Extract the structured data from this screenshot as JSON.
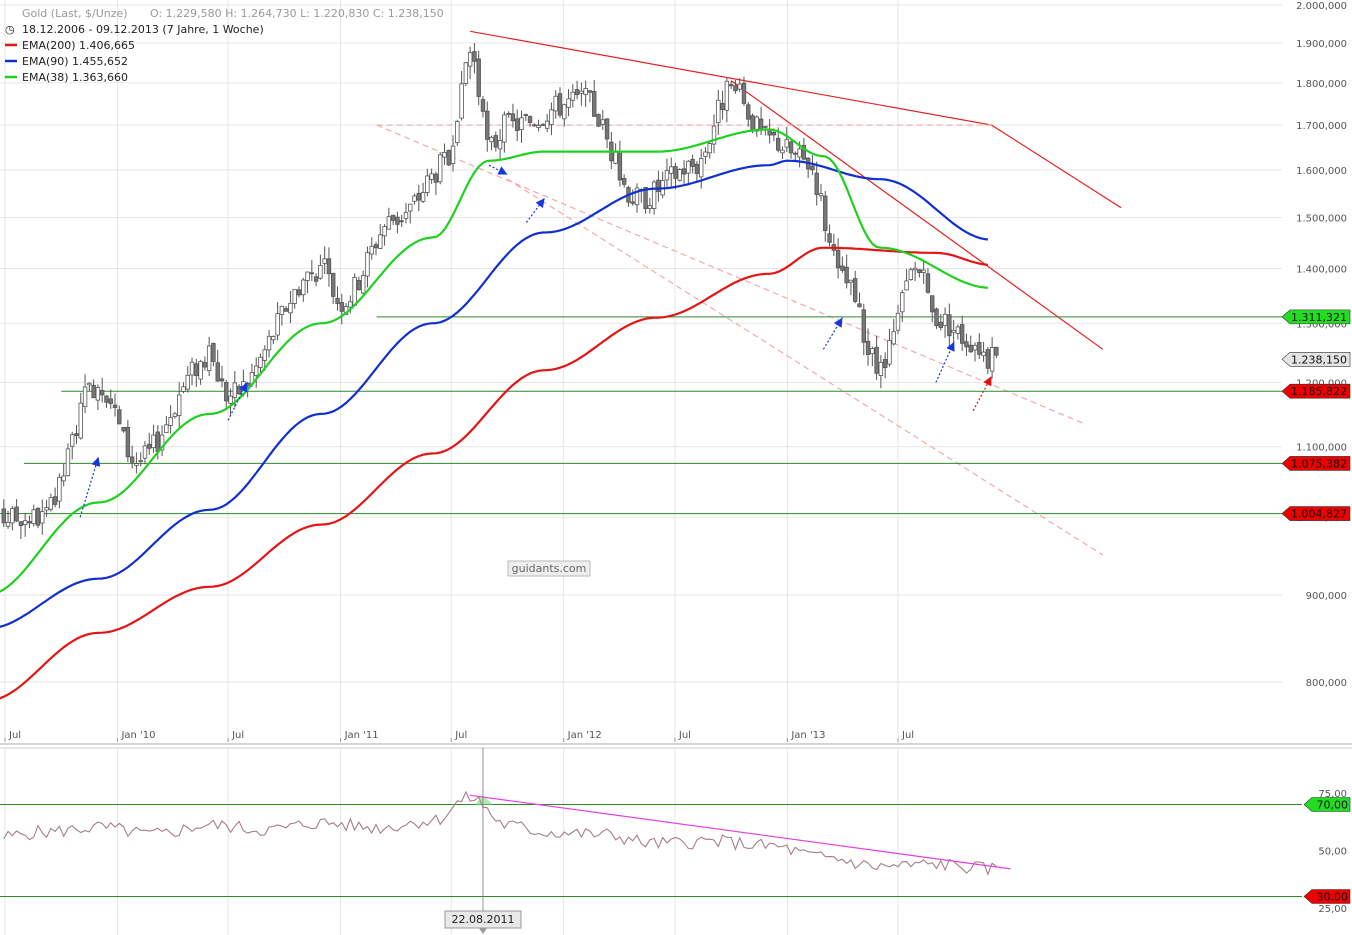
{
  "header": {
    "instrument": "Gold (Last, $/Unze)",
    "ohlc": "O: 1.229,580  H: 1.264,730  L: 1.220,830  C: 1.238,150",
    "range": "18.12.2006 - 09.12.2013 (7 Jahre, 1 Woche)"
  },
  "legend": [
    {
      "label": "EMA(200)",
      "value": "1.406,665",
      "color": "#e31515"
    },
    {
      "label": "EMA(90)",
      "value": "1.455,652",
      "color": "#1030d0"
    },
    {
      "label": "EMA(38)",
      "value": "1.363,660",
      "color": "#20d020"
    }
  ],
  "watermark": "guidants.com",
  "colors": {
    "up_candle": "#ffffff",
    "down_candle": "#777777",
    "candle_outline": "#555555",
    "trendline": "#e52020",
    "dashed_channel": "#f4a9a9",
    "support_line": "#2a8a2a",
    "rsi_line": "#a57e88",
    "rsi_trend": "#e040e0",
    "arrow_blue": "#1436e0",
    "arrow_red": "#e01010"
  },
  "chart_data": [
    {
      "type": "candlestick",
      "scale": "log",
      "ylim": [
        750000,
        2000000
      ],
      "x_ticks": [
        "Jul",
        "Jan '10",
        "Jul",
        "Jan '11",
        "Jul",
        "Jan '12",
        "Jul",
        "Jan '13",
        "Jul"
      ],
      "y_ticks": [
        "2.000,000",
        "1.900,000",
        "1.800,000",
        "1.700,000",
        "1.600,000",
        "1.500,000",
        "1.400,000",
        "1.300,000",
        "1.200,000",
        "1.100,000",
        "1.000,000",
        "900,000",
        "800,000"
      ],
      "y_tick_values": [
        2000000,
        1900000,
        1800000,
        1700000,
        1600000,
        1500000,
        1400000,
        1300000,
        1200000,
        1100000,
        1000000,
        900000,
        800000
      ],
      "price_anchor_dates": [
        "2009-09",
        "2009-12",
        "2010-02",
        "2010-06",
        "2010-07",
        "2010-12",
        "2011-01",
        "2011-04",
        "2011-07",
        "2011-08",
        "2011-09",
        "2011-10",
        "2012-02",
        "2012-05",
        "2012-08",
        "2012-10",
        "2012-12",
        "2013-02",
        "2013-04",
        "2013-06",
        "2013-08",
        "2013-09",
        "2013-11",
        "2013-12"
      ],
      "price_anchor_values": [
        1000000,
        1200000,
        1080000,
        1240000,
        1180000,
        1400000,
        1340000,
        1500000,
        1620000,
        1880000,
        1650000,
        1700000,
        1760000,
        1540000,
        1610000,
        1780000,
        1670000,
        1620000,
        1380000,
        1220000,
        1400000,
        1310000,
        1270000,
        1238150
      ],
      "ema200_dates": [
        "2009-06",
        "2009-12",
        "2010-06",
        "2010-12",
        "2011-06",
        "2011-12",
        "2012-06",
        "2012-12",
        "2013-03",
        "2013-09",
        "2013-12"
      ],
      "ema200_values": [
        780000,
        855000,
        910000,
        990000,
        1090000,
        1220000,
        1310000,
        1390000,
        1440000,
        1430000,
        1406665
      ],
      "ema90_dates": [
        "2009-06",
        "2009-12",
        "2010-06",
        "2010-12",
        "2011-06",
        "2011-12",
        "2012-06",
        "2012-12",
        "2013-01",
        "2013-06",
        "2013-12"
      ],
      "ema90_values": [
        860000,
        920000,
        1010000,
        1150000,
        1300000,
        1470000,
        1560000,
        1610000,
        1620000,
        1580000,
        1455652
      ],
      "ema38_dates": [
        "2009-06",
        "2009-12",
        "2010-06",
        "2010-12",
        "2011-06",
        "2011-09",
        "2011-12",
        "2012-06",
        "2012-12",
        "2013-03",
        "2013-06",
        "2013-12"
      ],
      "ema38_values": [
        900000,
        1020000,
        1150000,
        1300000,
        1460000,
        1620000,
        1640000,
        1640000,
        1690000,
        1630000,
        1440000,
        1363660
      ],
      "levels": [
        {
          "label": "1.311,321",
          "value": 1311321,
          "color": "#22dd22",
          "from": "2011-03"
        },
        {
          "label": "1.185,822",
          "value": 1185822,
          "color": "#ee0000",
          "from": "2009-10"
        },
        {
          "label": "1.075,382",
          "value": 1075382,
          "color": "#ee0000",
          "from": "2009-08"
        },
        {
          "label": "1.004,827",
          "value": 1004827,
          "color": "#ee0000",
          "from": "2009-06"
        }
      ],
      "current_price": {
        "label": "1.238,150",
        "value": 1238150
      },
      "trendlines": [
        {
          "style": "solid",
          "points": [
            [
              "2011-08",
              1930000
            ],
            [
              "2013-12",
              1700000
            ],
            [
              "2014-07",
              1520000
            ]
          ]
        },
        {
          "style": "solid",
          "points": [
            [
              "2012-10",
              1805000
            ],
            [
              "2014-06",
              1255000
            ]
          ]
        },
        {
          "style": "dashed",
          "points": [
            [
              "2011-03",
              1700000
            ],
            [
              "2013-12",
              1700000
            ]
          ]
        },
        {
          "style": "dashed",
          "points": [
            [
              "2011-03",
              1700000
            ],
            [
              "2014-05",
              1135000
            ]
          ]
        },
        {
          "style": "dashed",
          "points": [
            [
              "2011-10",
              1580000
            ],
            [
              "2014-06",
              950000
            ]
          ]
        }
      ],
      "arrows": [
        {
          "color": "blue",
          "from": [
            "2009-11",
            1000000
          ],
          "to": [
            "2009-12",
            1085000
          ]
        },
        {
          "color": "blue",
          "from": [
            "2010-07",
            1140000
          ],
          "to": [
            "2010-08",
            1200000
          ]
        },
        {
          "color": "blue",
          "from": [
            "2011-09",
            1610000
          ],
          "to": [
            "2011-10",
            1590000
          ]
        },
        {
          "color": "blue",
          "from": [
            "2011-11",
            1490000
          ],
          "to": [
            "2011-12",
            1540000
          ]
        },
        {
          "color": "blue",
          "from": [
            "2013-03",
            1255000
          ],
          "to": [
            "2013-04",
            1310000
          ]
        },
        {
          "color": "blue",
          "from": [
            "2013-09",
            1200000
          ],
          "to": [
            "2013-10",
            1268000
          ]
        },
        {
          "color": "red",
          "from": [
            "2013-11",
            1155000
          ],
          "to": [
            "2013-12",
            1210000
          ]
        }
      ]
    },
    {
      "type": "line",
      "name": "",
      "ylim": [
        20,
        85
      ],
      "y_ticks": [
        "75,00",
        "50,00",
        "25,00"
      ],
      "y_tick_values": [
        75,
        50,
        25
      ],
      "levels": [
        {
          "label": "70,00",
          "value": 70,
          "color": "#22dd22"
        },
        {
          "label": "30,00",
          "value": 30,
          "color": "#ee0000"
        }
      ],
      "marker": {
        "label": "22.08.2011",
        "date": "2011-08-22"
      },
      "anchor_dates": [
        "2009-06",
        "2009-09",
        "2009-12",
        "2010-03",
        "2010-06",
        "2010-09",
        "2010-12",
        "2011-03",
        "2011-06",
        "2011-08",
        "2011-10",
        "2011-12",
        "2012-03",
        "2012-06",
        "2012-09",
        "2012-12",
        "2013-03",
        "2013-06",
        "2013-09",
        "2013-12"
      ],
      "anchor_values": [
        55,
        58,
        60,
        57,
        61,
        59,
        62,
        60,
        63,
        73,
        61,
        58,
        57,
        53,
        54,
        52,
        47,
        43,
        44,
        42
      ],
      "trend": [
        [
          "2011-08",
          74
        ],
        [
          "2014-01",
          42
        ]
      ]
    }
  ]
}
